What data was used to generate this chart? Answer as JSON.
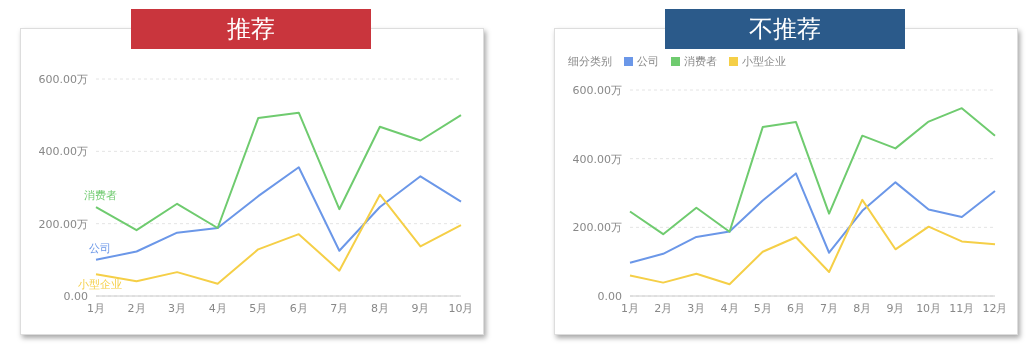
{
  "chart_data": [
    {
      "type": "line",
      "title": "推荐",
      "categories": [
        "1月",
        "2月",
        "3月",
        "4月",
        "5月",
        "6月",
        "7月",
        "8月",
        "9月",
        "10月"
      ],
      "series": [
        {
          "name": "公司",
          "color": "#6b97e8",
          "values": [
            100,
            123,
            175,
            188,
            276,
            356,
            125,
            246,
            331,
            261
          ]
        },
        {
          "name": "消费者",
          "color": "#6fcb6f",
          "values": [
            246,
            182,
            255,
            188,
            492,
            507,
            240,
            468,
            430,
            500
          ]
        },
        {
          "name": "小型企业",
          "color": "#f5cf47",
          "values": [
            60,
            41,
            66,
            34,
            129,
            171,
            70,
            280,
            137,
            196
          ]
        }
      ],
      "ylim": [
        0,
        600
      ],
      "yticks": [
        {
          "value": 0,
          "label": "0.00"
        },
        {
          "value": 200,
          "label": "200.00万"
        },
        {
          "value": 400,
          "label": "400.00万"
        },
        {
          "value": 600,
          "label": "600.00万"
        }
      ],
      "grid": "y",
      "legend": false,
      "marker": "none"
    },
    {
      "type": "line",
      "title": "不推荐",
      "legend_title": "细分类别",
      "categories": [
        "1月",
        "2月",
        "3月",
        "4月",
        "5月",
        "6月",
        "7月",
        "8月",
        "9月",
        "10月",
        "11月",
        "12月"
      ],
      "series": [
        {
          "name": "公司",
          "color": "#6b97e8",
          "values": [
            97,
            123,
            172,
            188,
            278,
            357,
            126,
            248,
            331,
            252,
            230,
            306
          ]
        },
        {
          "name": "消费者",
          "color": "#6fcb6f",
          "values": [
            246,
            180,
            257,
            187,
            492,
            507,
            240,
            467,
            430,
            508,
            547,
            467
          ]
        },
        {
          "name": "小型企业",
          "color": "#f5cf47",
          "values": [
            60,
            39,
            65,
            34,
            129,
            171,
            70,
            280,
            136,
            202,
            159,
            151
          ]
        }
      ],
      "ylim": [
        0,
        600
      ],
      "yticks": [
        {
          "value": 0,
          "label": "0.00"
        },
        {
          "value": 200,
          "label": "200.00万"
        },
        {
          "value": 400,
          "label": "400.00万"
        },
        {
          "value": 600,
          "label": "600.00万"
        }
      ],
      "grid": "y",
      "legend": "top left",
      "marker": "none"
    }
  ]
}
